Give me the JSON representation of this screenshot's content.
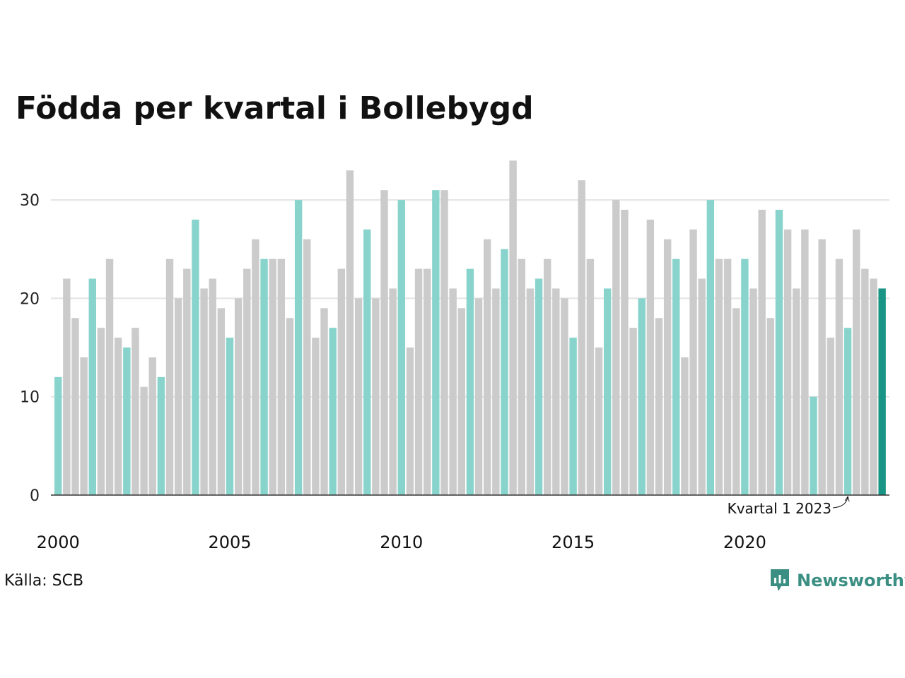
{
  "header": {
    "title": "Födda per kvartal i Bollebygd"
  },
  "footer": {
    "source": "Källa: SCB",
    "brand": "Newsworthy",
    "brand_icon": "newsworthy-logo-icon"
  },
  "colors": {
    "q1": "#88d4cc",
    "other": "#cbcbcb",
    "latest": "#1a9585",
    "brand": "#3a8f82"
  },
  "chart_data": {
    "type": "bar",
    "title": "Födda per kvartal i Bollebygd",
    "xlabel": "",
    "ylabel": "",
    "ylim": [
      0,
      36
    ],
    "yticks": [
      0,
      10,
      20,
      30
    ],
    "grid": true,
    "x_tick_labels": [
      "2000",
      "2005",
      "2010",
      "2015",
      "2020"
    ],
    "start_year": 2000,
    "annotation": {
      "text": "Kvartal 1 2023",
      "year": 2023,
      "quarter": 1
    },
    "values": [
      12,
      22,
      18,
      14,
      22,
      17,
      24,
      16,
      15,
      17,
      11,
      14,
      12,
      24,
      20,
      23,
      28,
      21,
      22,
      19,
      16,
      20,
      23,
      26,
      24,
      24,
      24,
      18,
      30,
      26,
      16,
      19,
      17,
      23,
      33,
      20,
      27,
      20,
      31,
      21,
      30,
      15,
      23,
      23,
      31,
      31,
      21,
      19,
      23,
      20,
      26,
      21,
      25,
      34,
      24,
      21,
      22,
      24,
      21,
      20,
      16,
      32,
      24,
      15,
      21,
      30,
      29,
      17,
      20,
      28,
      18,
      26,
      24,
      14,
      27,
      22,
      30,
      24,
      24,
      19,
      24,
      21,
      29,
      18,
      29,
      27,
      21,
      27,
      10,
      26,
      16,
      24,
      17,
      27,
      23,
      22,
      21
    ]
  }
}
